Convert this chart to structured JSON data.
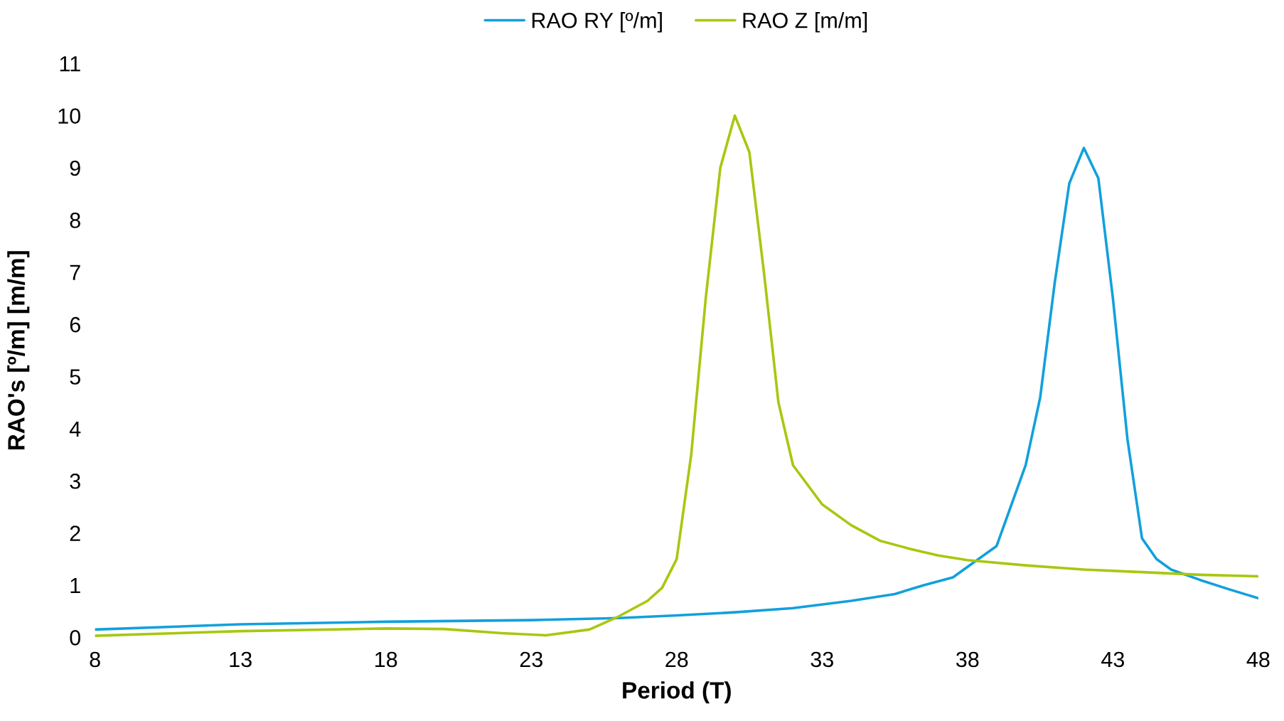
{
  "chart_data": {
    "type": "line",
    "xlabel": "Period (T)",
    "ylabel": "RAO's [º/m] [m/m]",
    "xlim": [
      8,
      48
    ],
    "xticks": [
      8,
      13,
      18,
      23,
      28,
      33,
      38,
      43,
      48
    ],
    "ylim": [
      0,
      11
    ],
    "yticks": [
      0,
      1,
      2,
      3,
      4,
      5,
      6,
      7,
      8,
      9,
      10,
      11
    ],
    "grid": false,
    "legend": "top",
    "marker": "none",
    "line_style": "solid",
    "series": [
      {
        "name": "RAO RY [º/m]",
        "color": "#12a0dc",
        "x": [
          8,
          13,
          18,
          23,
          26,
          28,
          30,
          32,
          34,
          35.5,
          36.5,
          37.5,
          38,
          39,
          40,
          40.5,
          41,
          41.5,
          42,
          42.5,
          43,
          43.5,
          44,
          44.5,
          45,
          46,
          47,
          48
        ],
        "values": [
          0.15,
          0.25,
          0.3,
          0.33,
          0.37,
          0.42,
          0.48,
          0.56,
          0.7,
          0.83,
          1.0,
          1.15,
          1.35,
          1.75,
          3.3,
          4.6,
          6.8,
          8.7,
          9.38,
          8.8,
          6.5,
          3.8,
          1.9,
          1.5,
          1.3,
          1.1,
          0.92,
          0.75
        ]
      },
      {
        "name": "RAO Z [m/m]",
        "color": "#a6c80f",
        "x": [
          8,
          13,
          18,
          20,
          22,
          23.5,
          25,
          26,
          27,
          27.5,
          28,
          28.5,
          29,
          29.5,
          30,
          30.5,
          31,
          31.5,
          32,
          33,
          34,
          35,
          36,
          37,
          38,
          40,
          42,
          44,
          46,
          48
        ],
        "values": [
          0.03,
          0.12,
          0.17,
          0.16,
          0.08,
          0.04,
          0.15,
          0.4,
          0.7,
          0.95,
          1.5,
          3.5,
          6.5,
          9.0,
          10.0,
          9.3,
          7.0,
          4.5,
          3.3,
          2.55,
          2.15,
          1.85,
          1.7,
          1.57,
          1.48,
          1.38,
          1.3,
          1.25,
          1.2,
          1.17
        ]
      }
    ]
  }
}
